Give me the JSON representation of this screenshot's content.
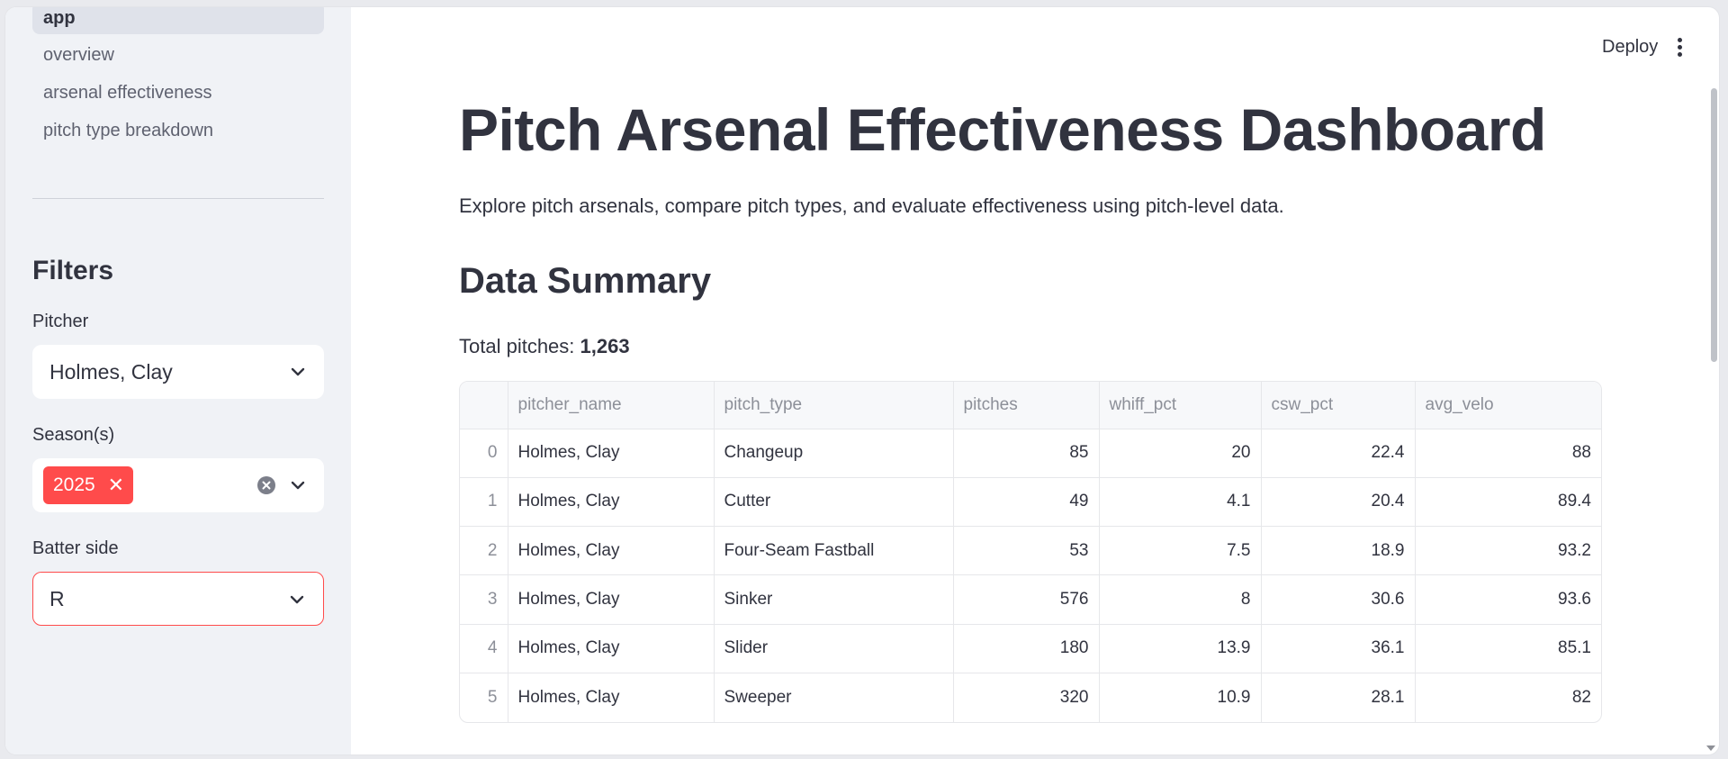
{
  "sidebar": {
    "nav": [
      {
        "label": "app",
        "active": true
      },
      {
        "label": "overview",
        "active": false
      },
      {
        "label": "arsenal effectiveness",
        "active": false
      },
      {
        "label": "pitch type breakdown",
        "active": false
      }
    ],
    "filters_title": "Filters",
    "pitcher": {
      "label": "Pitcher",
      "value": "Holmes, Clay"
    },
    "seasons": {
      "label": "Season(s)",
      "tags": [
        "2025"
      ]
    },
    "batter_side": {
      "label": "Batter side",
      "value": "R"
    }
  },
  "header": {
    "deploy_label": "Deploy",
    "menu_icon": "kebab-menu-icon"
  },
  "main": {
    "title": "Pitch Arsenal Effectiveness Dashboard",
    "description": "Explore pitch arsenals, compare pitch types, and evaluate effectiveness using pitch-level data.",
    "section_title": "Data Summary",
    "total_label": "Total pitches: ",
    "total_value": "1,263"
  },
  "table": {
    "columns": [
      "",
      "pitcher_name",
      "pitch_type",
      "pitches",
      "whiff_pct",
      "csw_pct",
      "avg_velo"
    ],
    "rows": [
      [
        "0",
        "Holmes, Clay",
        "Changeup",
        "85",
        "20",
        "22.4",
        "88"
      ],
      [
        "1",
        "Holmes, Clay",
        "Cutter",
        "49",
        "4.1",
        "20.4",
        "89.4"
      ],
      [
        "2",
        "Holmes, Clay",
        "Four-Seam Fastball",
        "53",
        "7.5",
        "18.9",
        "93.2"
      ],
      [
        "3",
        "Holmes, Clay",
        "Sinker",
        "576",
        "8",
        "30.6",
        "93.6"
      ],
      [
        "4",
        "Holmes, Clay",
        "Slider",
        "180",
        "13.9",
        "36.1",
        "85.1"
      ],
      [
        "5",
        "Holmes, Clay",
        "Sweeper",
        "320",
        "10.9",
        "28.1",
        "82"
      ]
    ]
  },
  "colors": {
    "accent": "#ff4b4b",
    "sidebar_bg": "#f0f2f6",
    "text": "#31333f"
  }
}
